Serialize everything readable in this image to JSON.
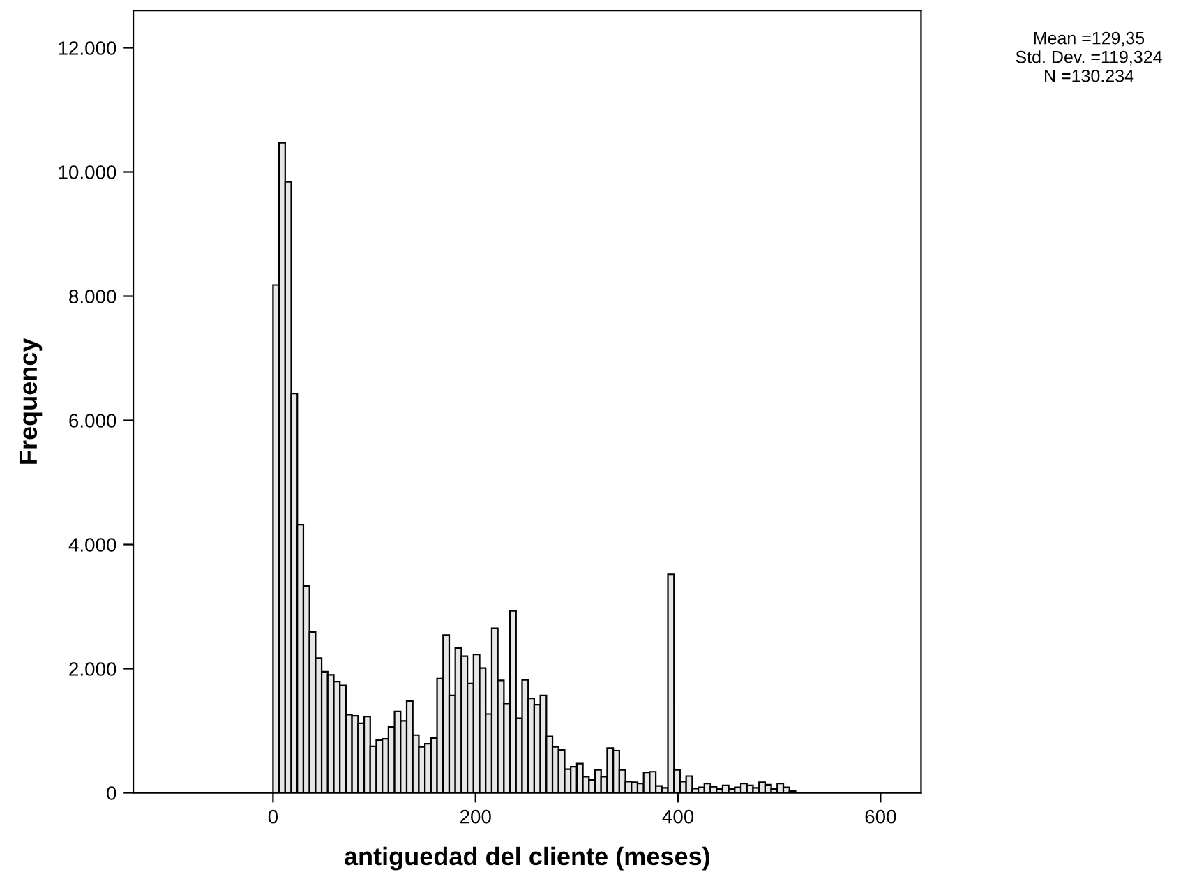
{
  "chart_data": {
    "type": "histogram",
    "xlabel": "antiguedad del cliente (meses)",
    "ylabel": "Frequency",
    "annotations": [
      "Mean =129,35",
      "Std. Dev. =119,324",
      "N =130.234"
    ],
    "bins": [
      0,
      6,
      12,
      18,
      24,
      30,
      36,
      42,
      48,
      54,
      60,
      66,
      72,
      78,
      84,
      90,
      96,
      102,
      108,
      114,
      120,
      126,
      132,
      138,
      144,
      150,
      156,
      162,
      168,
      174,
      180,
      186,
      192,
      198,
      204,
      210,
      216,
      222,
      228,
      234,
      240,
      246,
      252,
      258,
      264,
      270,
      276,
      282,
      288,
      294,
      300,
      306,
      312,
      318,
      324,
      330,
      336,
      342,
      348,
      354,
      360,
      366,
      372,
      378,
      384,
      390,
      396,
      402,
      408,
      414,
      420,
      426,
      432,
      438,
      444,
      450,
      456,
      462,
      468,
      474,
      480,
      486,
      492,
      498,
      504,
      510,
      516,
      522,
      528,
      534
    ],
    "values": [
      8180,
      10470,
      9840,
      6430,
      4320,
      3330,
      2590,
      2170,
      1950,
      1900,
      1790,
      1730,
      1260,
      1240,
      1120,
      1230,
      750,
      850,
      870,
      1060,
      1310,
      1160,
      1480,
      930,
      740,
      790,
      880,
      1840,
      2540,
      1570,
      2330,
      2200,
      1760,
      2230,
      2010,
      1270,
      2650,
      1810,
      1440,
      2930,
      1200,
      1820,
      1520,
      1420,
      1570,
      910,
      740,
      690,
      380,
      420,
      470,
      260,
      210,
      370,
      260,
      720,
      680,
      370,
      180,
      170,
      150,
      330,
      340,
      110,
      80,
      3520,
      370,
      180,
      270,
      70,
      90,
      150,
      100,
      60,
      120,
      60,
      90,
      150,
      120,
      80,
      170,
      130,
      60,
      150,
      90,
      30,
      null,
      null,
      null
    ],
    "color": "#e6e6e6",
    "xlim": [
      -138,
      640
    ],
    "ylim": [
      0,
      12600
    ],
    "xticks": [
      0,
      200,
      400,
      600
    ],
    "yticks": [
      {
        "value": 0,
        "label": "0"
      },
      {
        "value": 2000,
        "label": "2.000"
      },
      {
        "value": 4000,
        "label": "4.000"
      },
      {
        "value": 6000,
        "label": "6.000"
      },
      {
        "value": 8000,
        "label": "8.000"
      },
      {
        "value": 10000,
        "label": "10.000"
      },
      {
        "value": 12000,
        "label": "12.000"
      }
    ],
    "grid": false,
    "legend": false
  }
}
